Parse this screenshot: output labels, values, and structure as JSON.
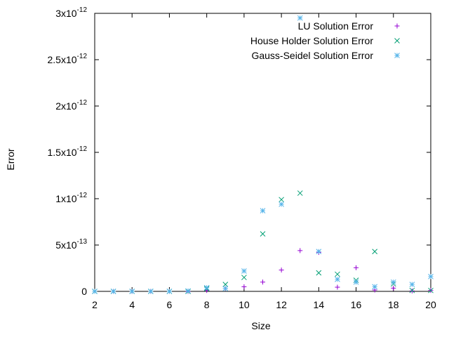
{
  "chart_data": {
    "type": "scatter",
    "xlabel": "Size",
    "ylabel": "Error",
    "xlim": [
      2,
      20
    ],
    "ylim": [
      0,
      3e-12
    ],
    "x_ticks": [
      {
        "value": 2,
        "label": "2"
      },
      {
        "value": 4,
        "label": "4"
      },
      {
        "value": 6,
        "label": "6"
      },
      {
        "value": 8,
        "label": "8"
      },
      {
        "value": 10,
        "label": "10"
      },
      {
        "value": 12,
        "label": "12"
      },
      {
        "value": 14,
        "label": "14"
      },
      {
        "value": 16,
        "label": "16"
      },
      {
        "value": 18,
        "label": "18"
      },
      {
        "value": 20,
        "label": "20"
      }
    ],
    "y_ticks": [
      {
        "value": 0,
        "label": "0",
        "exp": ""
      },
      {
        "value": 5e-13,
        "label": "5x10",
        "exp": "-13"
      },
      {
        "value": 1e-12,
        "label": "1x10",
        "exp": "-12"
      },
      {
        "value": 1.5e-12,
        "label": "1.5x10",
        "exp": "-12"
      },
      {
        "value": 2e-12,
        "label": "2x10",
        "exp": "-12"
      },
      {
        "value": 2.5e-12,
        "label": "2.5x10",
        "exp": "-12"
      },
      {
        "value": 3e-12,
        "label": "3x10",
        "exp": "-12"
      }
    ],
    "legend_position": "top-right",
    "series": [
      {
        "name": "LU Solution Error",
        "marker": "plus",
        "color": "#9400d3",
        "points": [
          [
            2,
            0
          ],
          [
            3,
            0
          ],
          [
            4,
            0
          ],
          [
            5,
            0
          ],
          [
            6,
            0
          ],
          [
            7,
            0
          ],
          [
            8,
            1e-14
          ],
          [
            9,
            3e-14
          ],
          [
            10,
            5e-14
          ],
          [
            11,
            1e-13
          ],
          [
            12,
            2.3e-13
          ],
          [
            13,
            4.4e-13
          ],
          [
            14,
            4.2e-13
          ],
          [
            15,
            4.5e-14
          ],
          [
            16,
            2.55e-13
          ],
          [
            17,
            1.5e-14
          ],
          [
            18,
            3.5e-14
          ],
          [
            19,
            5e-15
          ],
          [
            20,
            1e-14
          ]
        ]
      },
      {
        "name": "House Holder Solution Error",
        "marker": "cross",
        "color": "#009e73",
        "points": [
          [
            2,
            0
          ],
          [
            3,
            0
          ],
          [
            4,
            0
          ],
          [
            5,
            0
          ],
          [
            6,
            0
          ],
          [
            7,
            0
          ],
          [
            8,
            3e-14
          ],
          [
            9,
            7.5e-14
          ],
          [
            10,
            1.5e-13
          ],
          [
            11,
            6.2e-13
          ],
          [
            12,
            9.9e-13
          ],
          [
            13,
            1.06e-12
          ],
          [
            14,
            2e-13
          ],
          [
            15,
            1.85e-13
          ],
          [
            16,
            1.2e-13
          ],
          [
            17,
            4.3e-13
          ],
          [
            18,
            8e-14
          ],
          [
            19,
            1e-14
          ],
          [
            20,
            1e-14
          ]
        ]
      },
      {
        "name": "Gauss-Seidel Solution Error",
        "marker": "star",
        "color": "#56b4e9",
        "points": [
          [
            2,
            0
          ],
          [
            3,
            0
          ],
          [
            4,
            0
          ],
          [
            5,
            0
          ],
          [
            6,
            0
          ],
          [
            7,
            5e-15
          ],
          [
            8,
            4e-14
          ],
          [
            9,
            3e-14
          ],
          [
            10,
            2.2e-13
          ],
          [
            11,
            8.7e-13
          ],
          [
            12,
            9.4e-13
          ],
          [
            13,
            2.95e-12
          ],
          [
            14,
            4.3e-13
          ],
          [
            15,
            1.3e-13
          ],
          [
            16,
            1e-13
          ],
          [
            17,
            5e-14
          ],
          [
            18,
            1e-13
          ],
          [
            19,
            7.5e-14
          ],
          [
            20,
            1.6e-13
          ]
        ]
      }
    ]
  }
}
